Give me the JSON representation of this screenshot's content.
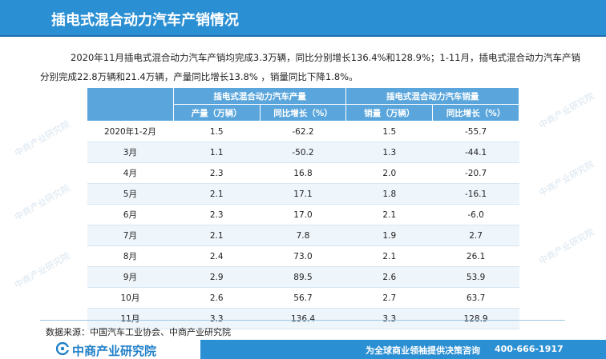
{
  "header": {
    "title": "插电式混合动力汽车产销情况"
  },
  "intro": {
    "text": "2020年11月插电式混合动力汽车产销均完成3.3万辆，同比分别增长136.4%和128.9%；1-11月，插电式混合动力汽车产销分别完成22.8万辆和21.4万辆，产量同比增长13.8% ，销量同比下降1.8%。"
  },
  "table": {
    "group_headers": [
      "插电式混合动力汽车产量",
      "插电式混合动力汽车销量"
    ],
    "sub_headers": [
      "产量（万辆）",
      "同比增长（%）",
      "销量（万辆）",
      "同比增长（%）"
    ],
    "rows": [
      {
        "month": "2020年1-2月",
        "prod": "1.5",
        "prod_yoy": "-62.2",
        "sales": "1.5",
        "sales_yoy": "-55.7"
      },
      {
        "month": "3月",
        "prod": "1.1",
        "prod_yoy": "-50.2",
        "sales": "1.3",
        "sales_yoy": "-44.1"
      },
      {
        "month": "4月",
        "prod": "2.3",
        "prod_yoy": "16.8",
        "sales": "2.0",
        "sales_yoy": "-20.7"
      },
      {
        "month": "5月",
        "prod": "2.1",
        "prod_yoy": "17.1",
        "sales": "1.8",
        "sales_yoy": "-16.1"
      },
      {
        "month": "6月",
        "prod": "2.3",
        "prod_yoy": "17.0",
        "sales": "2.1",
        "sales_yoy": "-6.0"
      },
      {
        "month": "7月",
        "prod": "2.1",
        "prod_yoy": "7.8",
        "sales": "1.9",
        "sales_yoy": "2.7"
      },
      {
        "month": "8月",
        "prod": "2.4",
        "prod_yoy": "73.0",
        "sales": "2.1",
        "sales_yoy": "26.1"
      },
      {
        "month": "9月",
        "prod": "2.9",
        "prod_yoy": "89.5",
        "sales": "2.6",
        "sales_yoy": "53.9"
      },
      {
        "month": "10月",
        "prod": "2.6",
        "prod_yoy": "56.7",
        "sales": "2.7",
        "sales_yoy": "63.7"
      },
      {
        "month": "11月",
        "prod": "3.3",
        "prod_yoy": "136.4",
        "sales": "3.3",
        "sales_yoy": "128.9"
      }
    ]
  },
  "source": {
    "text": "数据来源：中国汽车工业协会、中商产业研究院"
  },
  "footer": {
    "logo_text": "中商产业研究院",
    "slogan": "为全球商业领袖提供决策咨询",
    "phone": "400-666-1917"
  },
  "watermark": {
    "text": "中商产业研究院"
  },
  "colors": {
    "header_bg": "#2b8fd3",
    "table_header_bg": "#5aa6dc",
    "row_alt_bg": "#eef5fb"
  }
}
